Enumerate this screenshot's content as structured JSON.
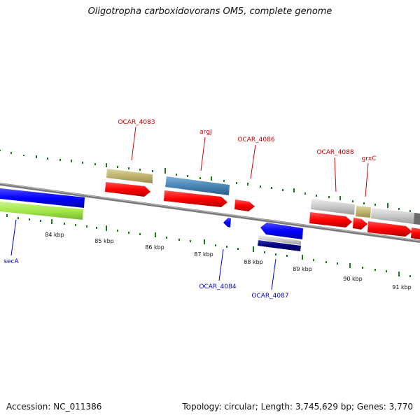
{
  "title": "Oligotropha carboxidovorans OM5, complete genome",
  "footer": {
    "accession": "Accession: NC_011386",
    "summary": "Topology: circular; Length: 3,745,629 bp; Genes: 3,770"
  },
  "colors": {
    "backbone": "#8c8c8c",
    "tick": "#1a7a1a",
    "cds": "#ff0000",
    "gene_label_forward": "#cc0000",
    "gene_label_reverse": "#0000cc",
    "reverse_cds": "#0000ff",
    "olive": "#bfb46e",
    "steel": "#4a86b8",
    "lime": "#a3e84a",
    "gray": "#c8c8c8",
    "navy": "#000080"
  },
  "kbp_labels": [
    "84 kbp",
    "85 kbp",
    "86 kbp",
    "87 kbp",
    "88 kbp",
    "89 kbp",
    "90 kbp",
    "91 kbp"
  ],
  "gene_labels": {
    "forward": [
      "OCAR_4083",
      "argJ",
      "OCAR_4086",
      "OCAR_4088",
      "grxC"
    ],
    "reverse": [
      "secA",
      "OCAR_4084",
      "OCAR_4087"
    ]
  }
}
